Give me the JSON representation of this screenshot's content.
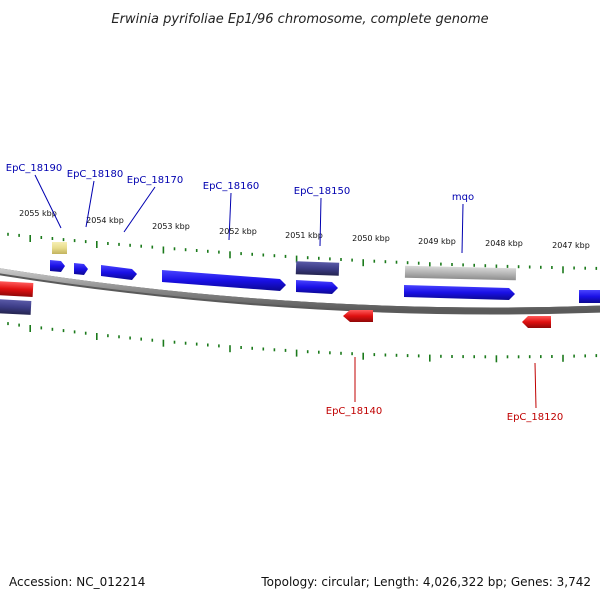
{
  "title": "Erwinia pyrifoliae Ep1/96 chromosome, complete genome",
  "footer": {
    "accession": "Accession: NC_012214",
    "summary": "Topology: circular; Length: 4,026,322 bp; Genes: 3,742"
  },
  "colors": {
    "forward_gene": "#1a10e6",
    "reverse_gene": "#e01010",
    "dark_feature": "#3c3c86",
    "grey_feature": "#b4b4b4",
    "yellow_feature": "#e8dc8c",
    "tick": "#1b7a1b",
    "backbone": "#8a8a8a",
    "label_forward": "#0000b0",
    "label_reverse": "#c00000"
  },
  "scale_ticks": [
    "2055 kbp",
    "2054 kbp",
    "2053 kbp",
    "2052 kbp",
    "2051 kbp",
    "2050 kbp",
    "2049 kbp",
    "2048 kbp",
    "2047 kbp"
  ],
  "gene_labels": [
    {
      "text": "EpC_18190",
      "strand": "forward"
    },
    {
      "text": "EpC_18180",
      "strand": "forward"
    },
    {
      "text": "EpC_18170",
      "strand": "forward"
    },
    {
      "text": "EpC_18160",
      "strand": "forward"
    },
    {
      "text": "EpC_18150",
      "strand": "forward"
    },
    {
      "text": "mqo",
      "strand": "forward"
    },
    {
      "text": "EpC_18140",
      "strand": "reverse"
    },
    {
      "text": "EpC_18120",
      "strand": "reverse"
    }
  ]
}
